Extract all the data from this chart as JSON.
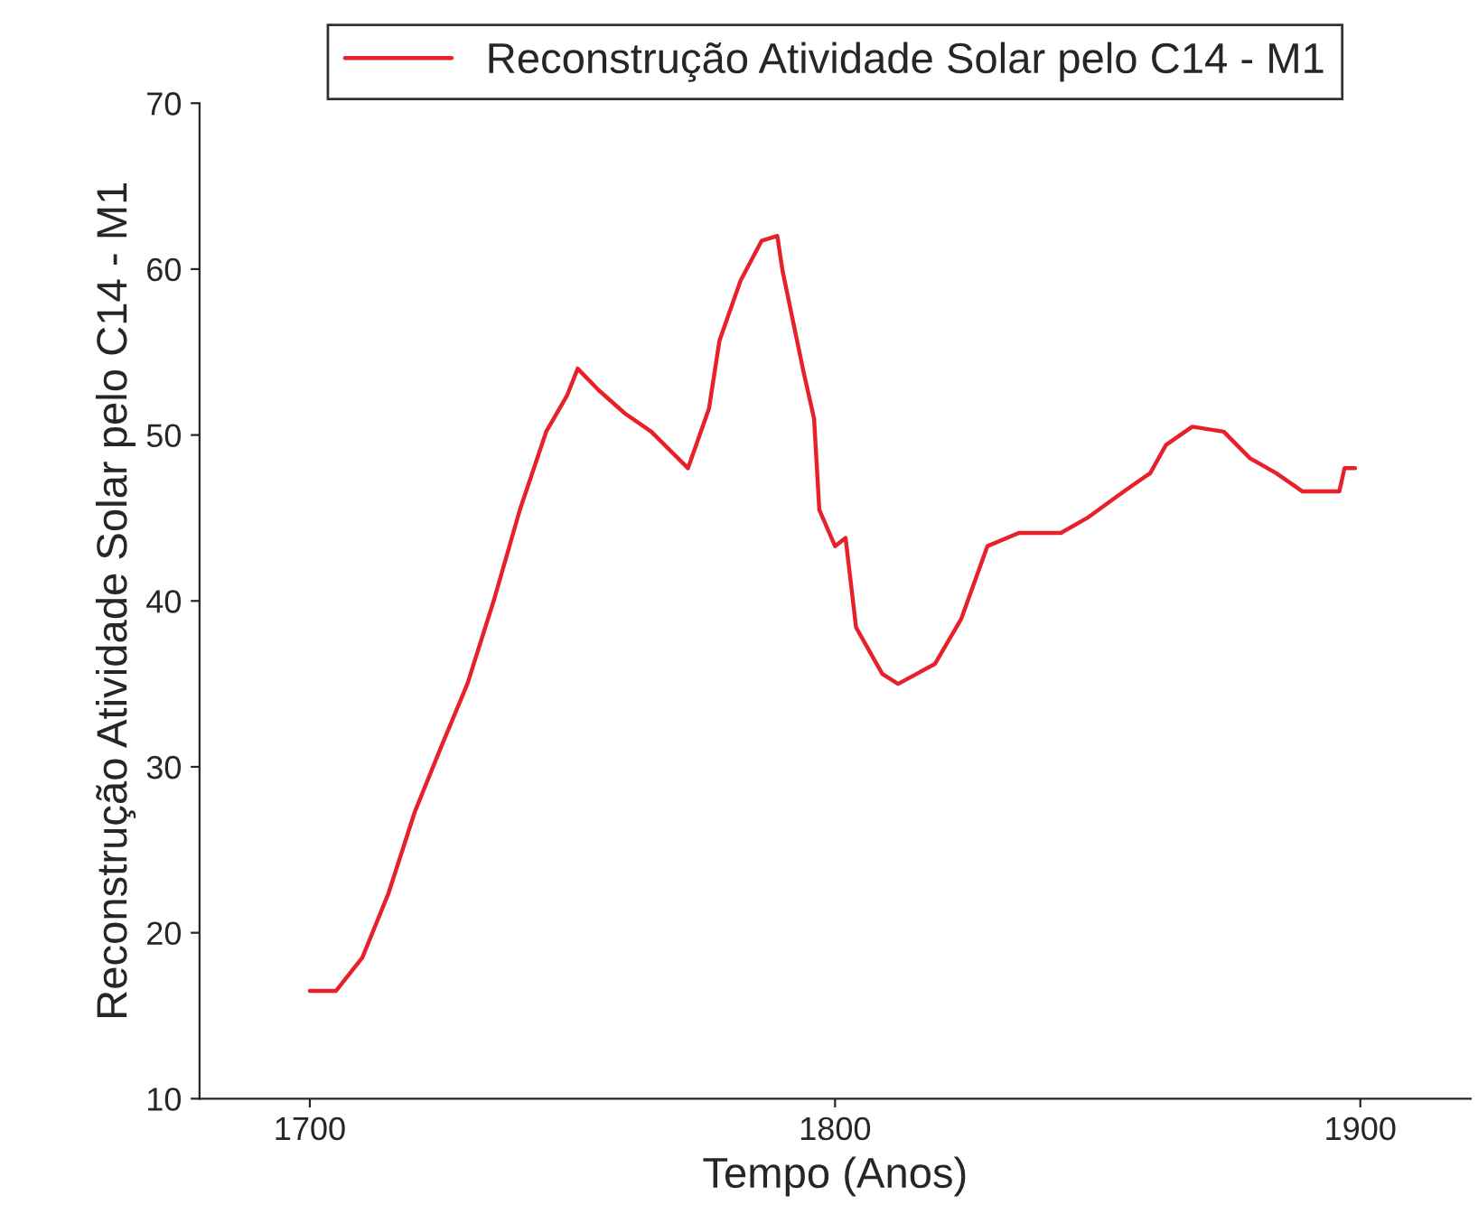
{
  "chart_data": {
    "type": "line",
    "xlabel": "Tempo (Anos)",
    "ylabel": "Reconstrução Atividade Solar pelo C14 - M1",
    "xlim": [
      1679,
      1921
    ],
    "xticks": [
      1700,
      1800,
      1900
    ],
    "ylim": [
      10,
      70
    ],
    "yticks": [
      10,
      20,
      30,
      40,
      50,
      60,
      70
    ],
    "grid": false,
    "legend": "top",
    "marker": "none",
    "line_style": "solid",
    "series": [
      {
        "name": "Reconstrução Atividade Solar pelo C14 - M1",
        "color": "#e8202a",
        "x": [
          1700,
          1705,
          1710,
          1715,
          1720,
          1725,
          1730,
          1735,
          1740,
          1745,
          1749,
          1751,
          1755,
          1760,
          1765,
          1772,
          1776,
          1778,
          1782,
          1786,
          1789,
          1790,
          1794,
          1796,
          1797,
          1800,
          1802,
          1804,
          1809,
          1812,
          1819,
          1824,
          1829,
          1835,
          1843,
          1848,
          1855,
          1860,
          1863,
          1868,
          1874,
          1879,
          1884,
          1889,
          1896,
          1897,
          1899
        ],
        "values": [
          16.5,
          16.5,
          18.5,
          22.4,
          27.3,
          31.2,
          35,
          40,
          45.5,
          50.2,
          52.4,
          54,
          52.7,
          51.3,
          50.2,
          48,
          51.6,
          55.7,
          59.3,
          61.7,
          62,
          59.9,
          53.8,
          51,
          45.5,
          43.3,
          43.8,
          38.4,
          35.6,
          35,
          36.2,
          38.9,
          43.3,
          44.1,
          44.1,
          45,
          46.6,
          47.7,
          49.4,
          50.5,
          50.2,
          48.6,
          47.7,
          46.6,
          46.6,
          48,
          48
        ]
      }
    ]
  }
}
